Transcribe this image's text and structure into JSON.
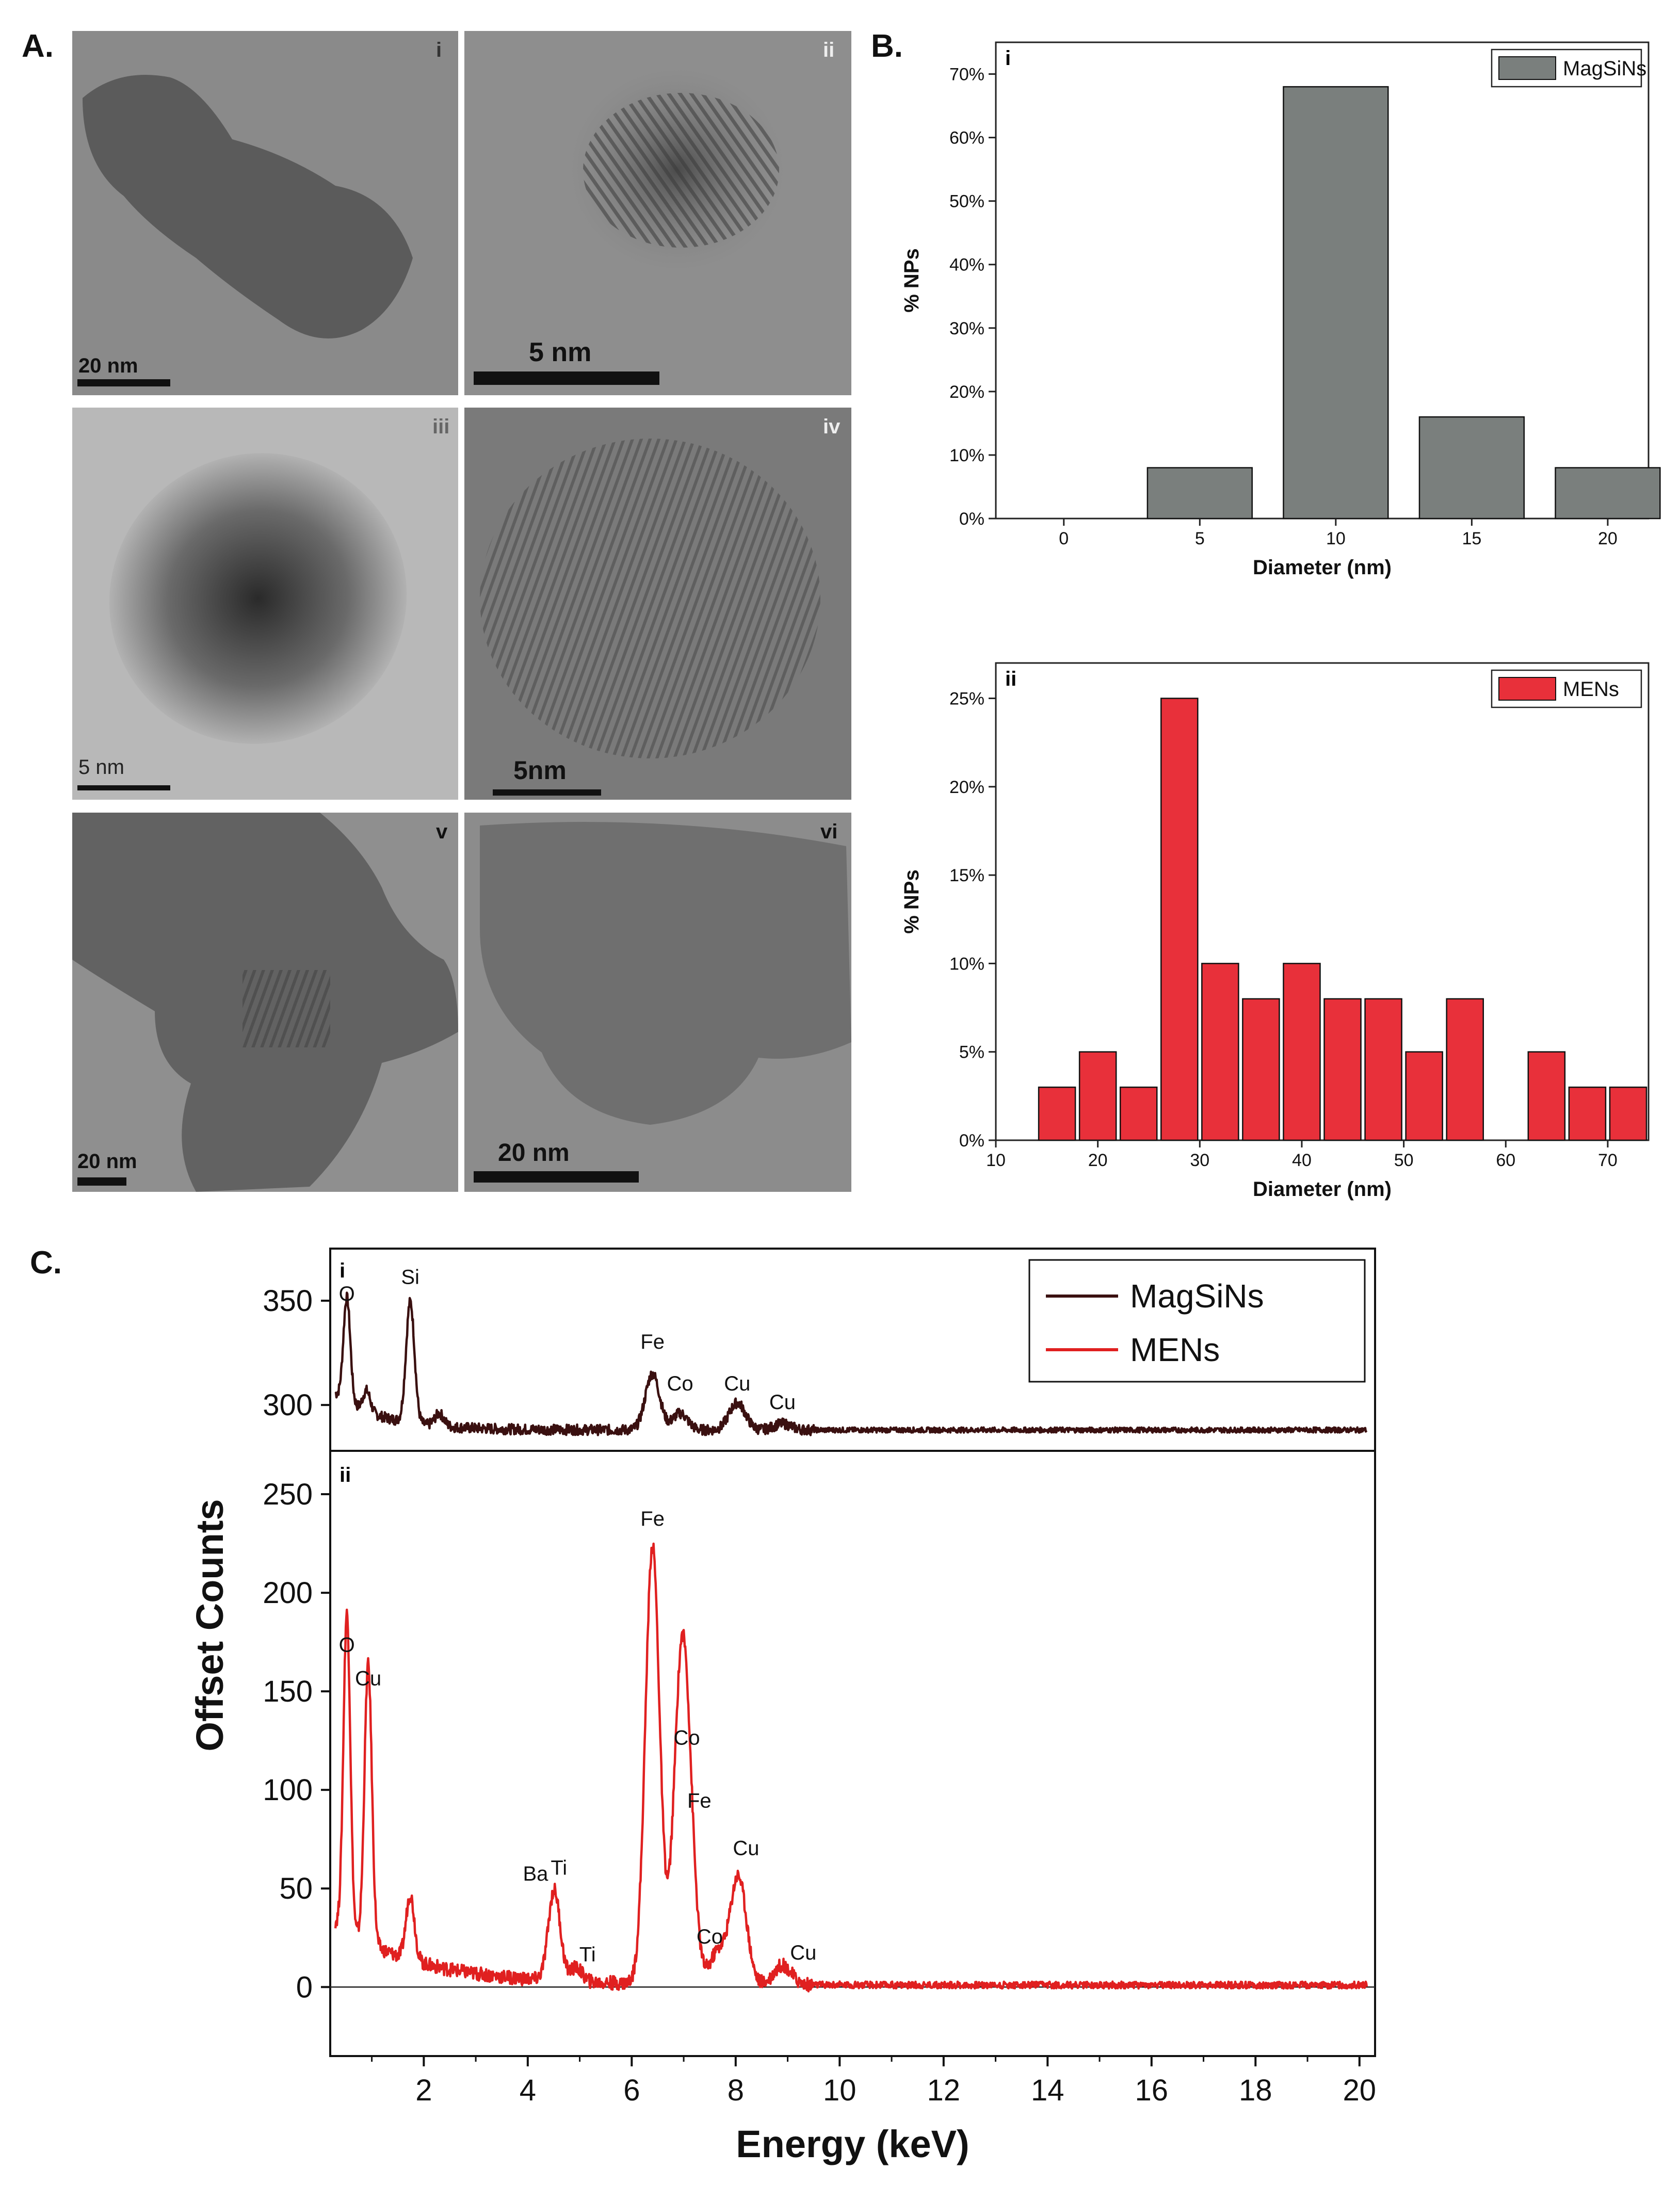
{
  "panels": {
    "a": "A.",
    "b": "B.",
    "c": "C."
  },
  "tem": [
    {
      "numeral": "i",
      "scale": "20 nm",
      "tone": "#8a8a8a"
    },
    {
      "numeral": "ii",
      "scale": "5 nm",
      "tone": "#8e8e8e"
    },
    {
      "numeral": "iii",
      "scale": "5 nm",
      "tone": "#b8b8b8"
    },
    {
      "numeral": "iv",
      "scale": "5nm",
      "tone": "#7a7a7a"
    },
    {
      "numeral": "v",
      "scale": "20 nm",
      "tone": "#8f8f8f"
    },
    {
      "numeral": "vi",
      "scale": "20 nm",
      "tone": "#8c8c8c"
    }
  ],
  "chart_data": [
    {
      "type": "bar",
      "panel_label": "i",
      "legend": "MagSiNs",
      "color": "#7a7f7d",
      "xlabel": "Diameter (nm)",
      "ylabel": "% NPs",
      "xlim": [
        -2.5,
        21.5
      ],
      "ylim": [
        0,
        75
      ],
      "x_ticks": [
        "0",
        "5",
        "10",
        "15",
        "20"
      ],
      "y_ticks": [
        "0%",
        "10%",
        "20%",
        "30%",
        "40%",
        "50%",
        "60%",
        "70%"
      ],
      "bin_width": 4,
      "x": [
        5,
        10,
        15,
        20
      ],
      "values": [
        8,
        68,
        16,
        8
      ]
    },
    {
      "type": "bar",
      "panel_label": "ii",
      "legend": "MENs",
      "color": "#e8303a",
      "xlabel": "Diameter (nm)",
      "ylabel": "% NPs",
      "xlim": [
        10,
        74
      ],
      "ylim": [
        0,
        27
      ],
      "x_ticks": [
        "10",
        "20",
        "30",
        "40",
        "50",
        "60",
        "70"
      ],
      "y_ticks": [
        "0%",
        "5%",
        "10%",
        "15%",
        "20%",
        "25%"
      ],
      "bin_width": 4,
      "x": [
        16,
        20,
        24,
        28,
        32,
        36,
        40,
        44,
        48,
        52,
        56,
        60,
        64,
        68,
        72
      ],
      "values": [
        3,
        5,
        3,
        25,
        10,
        8,
        10,
        8,
        8,
        5,
        8,
        0,
        5,
        3,
        3
      ]
    },
    {
      "type": "line",
      "ylabel": "Offset Counts",
      "xlabel": "Energy (keV)",
      "xlim": [
        0.2,
        20.3
      ],
      "x_ticks": [
        "2",
        "4",
        "6",
        "8",
        "10",
        "12",
        "14",
        "16",
        "18",
        "20"
      ],
      "upper_panel": {
        "label": "i",
        "ylim": [
          278,
          375
        ],
        "y_ticks": [
          "300",
          "350"
        ]
      },
      "lower_panel": {
        "label": "ii",
        "ylim": [
          -35,
          272
        ],
        "y_ticks": [
          "0",
          "50",
          "100",
          "150",
          "200",
          "250"
        ]
      },
      "series": [
        {
          "name": "MagSiNs",
          "color": "#3a1010",
          "baseline": 288,
          "peaks": [
            {
              "x": 0.52,
              "y": 338
            },
            {
              "x": 0.9,
              "y": 298
            },
            {
              "x": 1.74,
              "y": 346
            },
            {
              "x": 2.3,
              "y": 294
            },
            {
              "x": 6.4,
              "y": 315
            },
            {
              "x": 6.93,
              "y": 296
            },
            {
              "x": 8.03,
              "y": 301
            },
            {
              "x": 8.9,
              "y": 291
            }
          ],
          "peak_labels": [
            {
              "text": "O",
              "x": 0.52,
              "y": 350
            },
            {
              "text": "Si",
              "x": 1.74,
              "y": 358
            },
            {
              "text": "Fe",
              "x": 6.4,
              "y": 327
            },
            {
              "text": "Co",
              "x": 6.93,
              "y": 307
            },
            {
              "text": "Cu",
              "x": 8.03,
              "y": 307
            },
            {
              "text": "Cu",
              "x": 8.9,
              "y": 298
            }
          ]
        },
        {
          "name": "MENs",
          "color": "#e02020",
          "baseline": 1,
          "peaks": [
            {
              "x": 0.52,
              "y": 162
            },
            {
              "x": 0.93,
              "y": 142
            },
            {
              "x": 1.74,
              "y": 34
            },
            {
              "x": 4.51,
              "y": 47
            },
            {
              "x": 4.93,
              "y": 8
            },
            {
              "x": 6.4,
              "y": 223
            },
            {
              "x": 6.93,
              "y": 113
            },
            {
              "x": 7.06,
              "y": 85
            },
            {
              "x": 7.65,
              "y": 17
            },
            {
              "x": 8.05,
              "y": 56
            },
            {
              "x": 8.9,
              "y": 11
            }
          ],
          "peak_labels": [
            {
              "text": "O",
              "x": 0.52,
              "y": 170
            },
            {
              "text": "Cu",
              "x": 0.93,
              "y": 153
            },
            {
              "text": "Ba",
              "x": 4.15,
              "y": 54
            },
            {
              "text": "Ti",
              "x": 4.6,
              "y": 57
            },
            {
              "text": "Ti",
              "x": 5.15,
              "y": 13
            },
            {
              "text": "Fe",
              "x": 6.4,
              "y": 234
            },
            {
              "text": "Co",
              "x": 7.06,
              "y": 123
            },
            {
              "text": "Fe",
              "x": 7.3,
              "y": 91
            },
            {
              "text": "Co",
              "x": 7.5,
              "y": 22
            },
            {
              "text": "Cu",
              "x": 8.2,
              "y": 67
            },
            {
              "text": "Cu",
              "x": 9.3,
              "y": 14
            }
          ]
        }
      ]
    }
  ]
}
